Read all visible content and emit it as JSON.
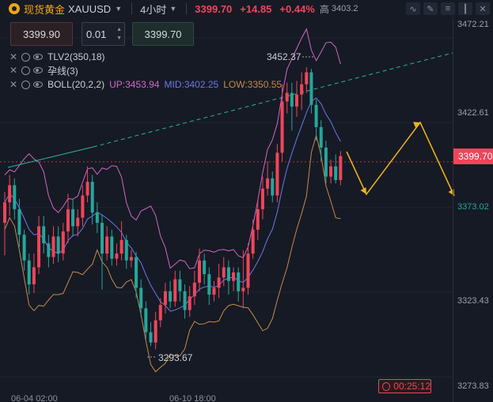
{
  "header": {
    "instrument_name": "现货黄金",
    "instrument_code": "XAUUSD",
    "timeframe": "4小时",
    "last_price": "3399.70",
    "change": "+14.85",
    "change_pct": "+0.44%",
    "high_label": "高",
    "high_value": "3403.2",
    "icons": [
      "trend-icon",
      "draw-icon",
      "indicator-icon",
      "candle-type-icon",
      "close-icon"
    ]
  },
  "order": {
    "sell_price": "3399.90",
    "quantity": "0.01",
    "buy_price": "3399.70"
  },
  "indicators": [
    {
      "name": "TLV2(350,18)"
    },
    {
      "name": "孕线(3)"
    },
    {
      "name": "BOLL(20,2,2)",
      "up": "UP:3453.94",
      "mid": "MID:3402.25",
      "low": "LOW:3350.55"
    }
  ],
  "axis": {
    "ticks": [
      "3472.21",
      "3422.61",
      "3373.02",
      "3323.43",
      "3273.83"
    ],
    "current_price_tag": "3399.70"
  },
  "annotations": {
    "high_label": "3452.37",
    "low_label": "3293.67",
    "countdown": "00:25:12"
  },
  "x_axis": {
    "labels": [
      "06-04 02:00",
      "06-10 18:00"
    ]
  },
  "colors": {
    "up": "#f0455a",
    "down": "#26a69a",
    "boll_up": "#d066c6",
    "boll_mid": "#6a78e8",
    "boll_low": "#c68a4a",
    "trendline": "#2bb39a",
    "forecast": "#f0b31a",
    "accent": "#f0a31a"
  },
  "chart_data": {
    "type": "candlestick",
    "timeframe": "4h",
    "ylim": [
      3268,
      3480
    ],
    "candles": [
      [
        3364,
        3376,
        3345,
        3382
      ],
      [
        3376,
        3386,
        3368,
        3392
      ],
      [
        3386,
        3372,
        3366,
        3390
      ],
      [
        3372,
        3357,
        3350,
        3378
      ],
      [
        3357,
        3342,
        3336,
        3360
      ],
      [
        3342,
        3328,
        3322,
        3346
      ],
      [
        3328,
        3338,
        3323,
        3346
      ],
      [
        3338,
        3362,
        3334,
        3368
      ],
      [
        3362,
        3352,
        3346,
        3368
      ],
      [
        3352,
        3344,
        3338,
        3357
      ],
      [
        3344,
        3356,
        3340,
        3362
      ],
      [
        3356,
        3346,
        3341,
        3362
      ],
      [
        3346,
        3359,
        3342,
        3364
      ],
      [
        3359,
        3372,
        3352,
        3381
      ],
      [
        3372,
        3362,
        3356,
        3378
      ],
      [
        3362,
        3367,
        3356,
        3372
      ],
      [
        3367,
        3380,
        3362,
        3386
      ],
      [
        3380,
        3388,
        3376,
        3397
      ],
      [
        3388,
        3370,
        3363,
        3392
      ],
      [
        3370,
        3364,
        3358,
        3376
      ],
      [
        3364,
        3346,
        3325,
        3369
      ],
      [
        3346,
        3356,
        3342,
        3362
      ],
      [
        3356,
        3343,
        3339,
        3360
      ],
      [
        3343,
        3346,
        3339,
        3352
      ],
      [
        3346,
        3354,
        3342,
        3365
      ],
      [
        3354,
        3342,
        3337,
        3357
      ],
      [
        3342,
        3344,
        3338,
        3348
      ],
      [
        3344,
        3326,
        3320,
        3347
      ],
      [
        3326,
        3314,
        3309,
        3331
      ],
      [
        3314,
        3300,
        3296,
        3318
      ],
      [
        3300,
        3294,
        3292,
        3306
      ],
      [
        3294,
        3307,
        3290,
        3312
      ],
      [
        3307,
        3316,
        3303,
        3320
      ],
      [
        3316,
        3324,
        3311,
        3329
      ],
      [
        3324,
        3318,
        3314,
        3330
      ],
      [
        3318,
        3331,
        3315,
        3336
      ],
      [
        3331,
        3324,
        3318,
        3336
      ],
      [
        3324,
        3313,
        3308,
        3328
      ],
      [
        3313,
        3321,
        3309,
        3327
      ],
      [
        3321,
        3329,
        3316,
        3336
      ],
      [
        3329,
        3342,
        3324,
        3349
      ],
      [
        3342,
        3334,
        3328,
        3346
      ],
      [
        3334,
        3322,
        3316,
        3338
      ],
      [
        3322,
        3326,
        3318,
        3330
      ],
      [
        3326,
        3332,
        3320,
        3340
      ],
      [
        3332,
        3338,
        3327,
        3344
      ],
      [
        3338,
        3330,
        3322,
        3342
      ],
      [
        3330,
        3335,
        3324,
        3338
      ],
      [
        3335,
        3324,
        3318,
        3338
      ],
      [
        3324,
        3326,
        3314,
        3348
      ],
      [
        3326,
        3346,
        3322,
        3352
      ],
      [
        3346,
        3360,
        3343,
        3366
      ],
      [
        3360,
        3372,
        3354,
        3378
      ],
      [
        3372,
        3384,
        3366,
        3391
      ],
      [
        3384,
        3390,
        3380,
        3400
      ],
      [
        3390,
        3380,
        3376,
        3394
      ],
      [
        3380,
        3405,
        3376,
        3410
      ],
      [
        3405,
        3435,
        3400,
        3445
      ],
      [
        3435,
        3440,
        3428,
        3446
      ],
      [
        3440,
        3432,
        3418,
        3446
      ],
      [
        3432,
        3439,
        3426,
        3447
      ],
      [
        3439,
        3445,
        3430,
        3452
      ],
      [
        3445,
        3452,
        3440,
        3455
      ],
      [
        3452,
        3433,
        3428,
        3454
      ],
      [
        3433,
        3420,
        3412,
        3436
      ],
      [
        3420,
        3408,
        3400,
        3424
      ],
      [
        3408,
        3391,
        3387,
        3412
      ],
      [
        3391,
        3397,
        3387,
        3401
      ],
      [
        3397,
        3389,
        3387,
        3404
      ],
      [
        3389,
        3403,
        3386,
        3406
      ]
    ],
    "bollinger": {
      "period": 20,
      "std": 2,
      "up": 3453.94,
      "mid": 3402.25,
      "low": 3350.55
    },
    "high": 3452.37,
    "low": 3293.67,
    "last": 3399.7
  }
}
